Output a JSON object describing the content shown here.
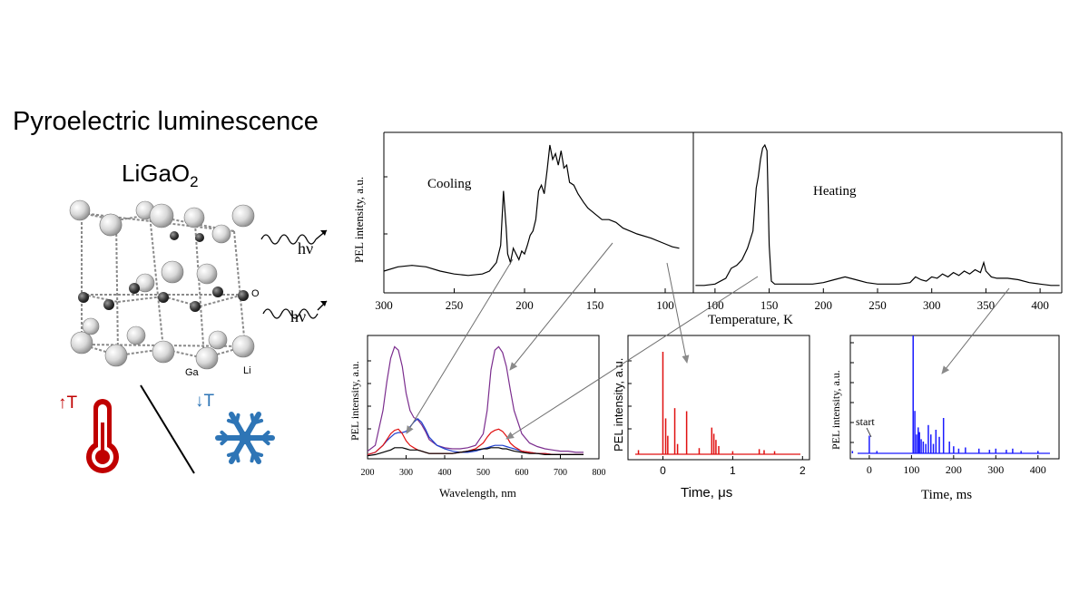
{
  "headline": {
    "title": "Pyroelectric luminescence",
    "formula_base": "LiGaO",
    "formula_sub": "2"
  },
  "crystal": {
    "labels": {
      "o": "O",
      "ga": "Ga",
      "li": "Li"
    },
    "photon_label": "hν",
    "heat_label": "↑T",
    "cool_label": "↓T",
    "colors": {
      "heat": "#c00000",
      "cool": "#2e75b6"
    }
  },
  "chart_data": [
    {
      "id": "temperature",
      "type": "line",
      "title": "",
      "xlabel": "Temperature, K",
      "ylabel": "PEL intensity, a.u.",
      "panels": [
        {
          "name": "Cooling",
          "xlim": [
            300,
            80
          ],
          "xticks": [
            300,
            250,
            200,
            150,
            100
          ],
          "ylim": [
            0,
            1
          ],
          "x": [
            300,
            290,
            280,
            270,
            260,
            250,
            240,
            230,
            225,
            220,
            217,
            215,
            213,
            212,
            210,
            208,
            206,
            204,
            202,
            200,
            198,
            196,
            194,
            192,
            190,
            188,
            186,
            184,
            182,
            180,
            178,
            176,
            174,
            172,
            170,
            168,
            165,
            162,
            158,
            155,
            150,
            145,
            140,
            135,
            130,
            120,
            110,
            100,
            95,
            90
          ],
          "y": [
            0.12,
            0.15,
            0.16,
            0.15,
            0.12,
            0.1,
            0.09,
            0.1,
            0.12,
            0.18,
            0.3,
            0.68,
            0.42,
            0.24,
            0.18,
            0.28,
            0.24,
            0.2,
            0.26,
            0.24,
            0.3,
            0.37,
            0.4,
            0.48,
            0.68,
            0.72,
            0.66,
            0.82,
            1.0,
            0.9,
            0.94,
            0.86,
            0.96,
            0.84,
            0.86,
            0.74,
            0.72,
            0.66,
            0.6,
            0.56,
            0.52,
            0.48,
            0.48,
            0.46,
            0.42,
            0.38,
            0.35,
            0.31,
            0.29,
            0.28
          ]
        },
        {
          "name": "Heating",
          "xlim": [
            80,
            420
          ],
          "xticks": [
            100,
            150,
            200,
            250,
            300,
            350,
            400
          ],
          "ylim": [
            0,
            1
          ],
          "x": [
            82,
            90,
            100,
            110,
            115,
            120,
            125,
            130,
            135,
            138,
            140,
            142,
            144,
            146,
            148,
            150,
            152,
            155,
            160,
            170,
            180,
            190,
            200,
            210,
            220,
            230,
            240,
            250,
            260,
            270,
            280,
            285,
            290,
            295,
            300,
            305,
            310,
            315,
            320,
            325,
            330,
            335,
            340,
            345,
            348,
            350,
            355,
            360,
            370,
            380,
            390,
            400,
            410,
            418
          ],
          "y": [
            0.02,
            0.02,
            0.03,
            0.07,
            0.14,
            0.16,
            0.2,
            0.28,
            0.4,
            0.7,
            0.78,
            0.9,
            0.98,
            1.0,
            0.96,
            0.3,
            0.05,
            0.03,
            0.03,
            0.03,
            0.03,
            0.03,
            0.04,
            0.06,
            0.08,
            0.06,
            0.04,
            0.03,
            0.03,
            0.03,
            0.04,
            0.08,
            0.06,
            0.05,
            0.08,
            0.07,
            0.1,
            0.08,
            0.11,
            0.09,
            0.12,
            0.1,
            0.13,
            0.11,
            0.18,
            0.12,
            0.08,
            0.07,
            0.07,
            0.06,
            0.04,
            0.03,
            0.02,
            0.02
          ]
        }
      ]
    },
    {
      "id": "spectra",
      "type": "line",
      "title": "",
      "xlabel": "Wavelength, nm",
      "ylabel": "PEL intensity, a.u.",
      "xlim": [
        200,
        800
      ],
      "xticks": [
        200,
        300,
        400,
        500,
        600,
        700,
        800
      ],
      "ylim": [
        0,
        1
      ],
      "x": [
        200,
        220,
        240,
        250,
        260,
        270,
        280,
        290,
        300,
        310,
        320,
        330,
        340,
        350,
        360,
        380,
        400,
        420,
        440,
        460,
        480,
        500,
        510,
        520,
        530,
        540,
        550,
        560,
        570,
        580,
        600,
        620,
        640,
        660,
        680,
        700,
        720,
        740,
        760
      ],
      "series": [
        {
          "color": "#7b2d8e",
          "values": [
            0.05,
            0.1,
            0.4,
            0.65,
            0.85,
            0.95,
            0.92,
            0.78,
            0.55,
            0.4,
            0.34,
            0.32,
            0.28,
            0.22,
            0.15,
            0.1,
            0.08,
            0.07,
            0.07,
            0.08,
            0.1,
            0.2,
            0.4,
            0.75,
            0.92,
            0.95,
            0.9,
            0.78,
            0.58,
            0.4,
            0.2,
            0.12,
            0.09,
            0.07,
            0.06,
            0.05,
            0.05,
            0.04,
            0.04
          ]
        },
        {
          "color": "#1f3fcc",
          "values": [
            0.02,
            0.04,
            0.1,
            0.14,
            0.17,
            0.2,
            0.21,
            0.21,
            0.22,
            0.26,
            0.3,
            0.33,
            0.3,
            0.24,
            0.17,
            0.1,
            0.07,
            0.05,
            0.04,
            0.04,
            0.05,
            0.07,
            0.08,
            0.09,
            0.1,
            0.1,
            0.1,
            0.09,
            0.08,
            0.07,
            0.05,
            0.04,
            0.03,
            0.03,
            0.02,
            0.02,
            0.02,
            0.02,
            0.02
          ]
        },
        {
          "color": "#e01010",
          "values": [
            0.02,
            0.04,
            0.1,
            0.15,
            0.2,
            0.23,
            0.24,
            0.2,
            0.14,
            0.1,
            0.08,
            0.06,
            0.05,
            0.04,
            0.03,
            0.03,
            0.03,
            0.03,
            0.04,
            0.05,
            0.07,
            0.12,
            0.17,
            0.21,
            0.23,
            0.24,
            0.22,
            0.18,
            0.12,
            0.09,
            0.05,
            0.04,
            0.03,
            0.03,
            0.02,
            0.02,
            0.02,
            0.02,
            0.02
          ]
        },
        {
          "color": "#000000",
          "values": [
            0.01,
            0.02,
            0.04,
            0.05,
            0.06,
            0.08,
            0.08,
            0.08,
            0.07,
            0.06,
            0.06,
            0.06,
            0.05,
            0.04,
            0.03,
            0.03,
            0.03,
            0.03,
            0.04,
            0.05,
            0.06,
            0.07,
            0.07,
            0.08,
            0.08,
            0.08,
            0.07,
            0.07,
            0.06,
            0.05,
            0.04,
            0.03,
            0.03,
            0.02,
            0.02,
            0.02,
            0.02,
            0.02,
            0.02
          ]
        }
      ]
    },
    {
      "id": "time-us",
      "type": "line",
      "title": "",
      "xlabel": "Time, μs",
      "ylabel": "PEL intensity, a.u.",
      "color": "#e01010",
      "xlim": [
        -0.5,
        2.1
      ],
      "xticks": [
        0,
        1,
        2
      ],
      "ylim": [
        0,
        1
      ],
      "baseline": 0.02,
      "pulses": [
        {
          "x": -0.35,
          "y": 0.04
        },
        {
          "x": 0.0,
          "y": 1.0
        },
        {
          "x": 0.04,
          "y": 0.35
        },
        {
          "x": 0.07,
          "y": 0.18
        },
        {
          "x": 0.17,
          "y": 0.45
        },
        {
          "x": 0.21,
          "y": 0.1
        },
        {
          "x": 0.34,
          "y": 0.42
        },
        {
          "x": 0.52,
          "y": 0.06
        },
        {
          "x": 0.7,
          "y": 0.26
        },
        {
          "x": 0.73,
          "y": 0.2
        },
        {
          "x": 0.76,
          "y": 0.14
        },
        {
          "x": 0.8,
          "y": 0.08
        },
        {
          "x": 1.0,
          "y": 0.03
        },
        {
          "x": 1.38,
          "y": 0.05
        },
        {
          "x": 1.45,
          "y": 0.04
        },
        {
          "x": 1.6,
          "y": 0.03
        }
      ]
    },
    {
      "id": "time-ms",
      "type": "line",
      "title": "",
      "xlabel": "Time, ms",
      "ylabel": "PEL intensity, a.u.",
      "color": "#1a1aff",
      "xlim": [
        -45,
        450
      ],
      "xticks": [
        0,
        100,
        200,
        300,
        400
      ],
      "ylim": [
        0,
        1
      ],
      "annotation": "start",
      "pulses": [
        {
          "x": -40,
          "y": 0.02
        },
        {
          "x": 0,
          "y": 0.15
        },
        {
          "x": 18,
          "y": 0.02
        },
        {
          "x": 104,
          "y": 1.0
        },
        {
          "x": 108,
          "y": 0.36
        },
        {
          "x": 112,
          "y": 0.16
        },
        {
          "x": 116,
          "y": 0.22
        },
        {
          "x": 119,
          "y": 0.18
        },
        {
          "x": 123,
          "y": 0.12
        },
        {
          "x": 128,
          "y": 0.1
        },
        {
          "x": 134,
          "y": 0.08
        },
        {
          "x": 140,
          "y": 0.24
        },
        {
          "x": 146,
          "y": 0.16
        },
        {
          "x": 152,
          "y": 0.08
        },
        {
          "x": 158,
          "y": 0.2
        },
        {
          "x": 166,
          "y": 0.14
        },
        {
          "x": 176,
          "y": 0.3
        },
        {
          "x": 190,
          "y": 0.1
        },
        {
          "x": 200,
          "y": 0.06
        },
        {
          "x": 212,
          "y": 0.04
        },
        {
          "x": 228,
          "y": 0.05
        },
        {
          "x": 260,
          "y": 0.04
        },
        {
          "x": 285,
          "y": 0.03
        },
        {
          "x": 300,
          "y": 0.04
        },
        {
          "x": 325,
          "y": 0.03
        },
        {
          "x": 340,
          "y": 0.04
        },
        {
          "x": 360,
          "y": 0.02
        },
        {
          "x": 400,
          "y": 0.02
        }
      ]
    }
  ]
}
